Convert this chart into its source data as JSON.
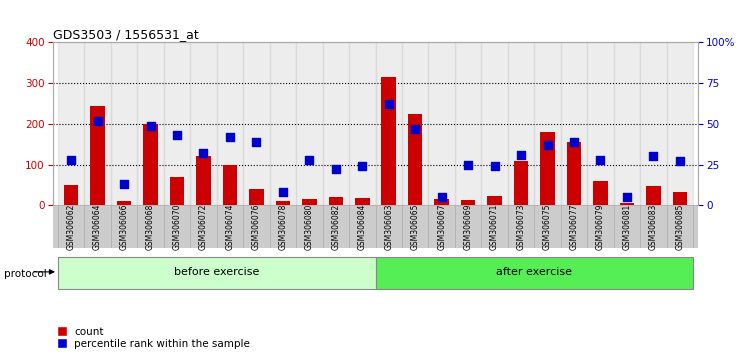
{
  "title": "GDS3503 / 1556531_at",
  "samples": [
    "GSM306062",
    "GSM306064",
    "GSM306066",
    "GSM306068",
    "GSM306070",
    "GSM306072",
    "GSM306074",
    "GSM306076",
    "GSM306078",
    "GSM306080",
    "GSM306082",
    "GSM306084",
    "GSM306063",
    "GSM306065",
    "GSM306067",
    "GSM306069",
    "GSM306071",
    "GSM306073",
    "GSM306075",
    "GSM306077",
    "GSM306079",
    "GSM306081",
    "GSM306083",
    "GSM306085"
  ],
  "counts": [
    50,
    245,
    10,
    200,
    70,
    120,
    100,
    40,
    10,
    15,
    20,
    18,
    315,
    225,
    15,
    12,
    22,
    110,
    180,
    155,
    60,
    5,
    48,
    33
  ],
  "percentile_ranks": [
    28,
    52,
    13,
    49,
    43,
    32,
    42,
    39,
    8,
    28,
    22,
    24,
    62,
    47,
    5,
    25,
    24,
    31,
    37,
    39,
    28,
    5,
    30,
    27
  ],
  "before_exercise_count": 12,
  "after_exercise_count": 12,
  "bar_color": "#cc0000",
  "dot_color": "#0000cc",
  "ylim_left": [
    0,
    400
  ],
  "ylim_right": [
    0,
    100
  ],
  "yticks_left": [
    0,
    100,
    200,
    300,
    400
  ],
  "yticks_right": [
    0,
    25,
    50,
    75,
    100
  ],
  "grid_values": [
    100,
    200,
    300
  ],
  "before_label": "before exercise",
  "after_label": "after exercise",
  "protocol_label": "protocol",
  "legend_count": "count",
  "legend_percentile": "percentile rank within the sample",
  "before_color": "#ccffcc",
  "after_color": "#55ee55",
  "label_area_color": "#cccccc",
  "background_color": "#ffffff"
}
